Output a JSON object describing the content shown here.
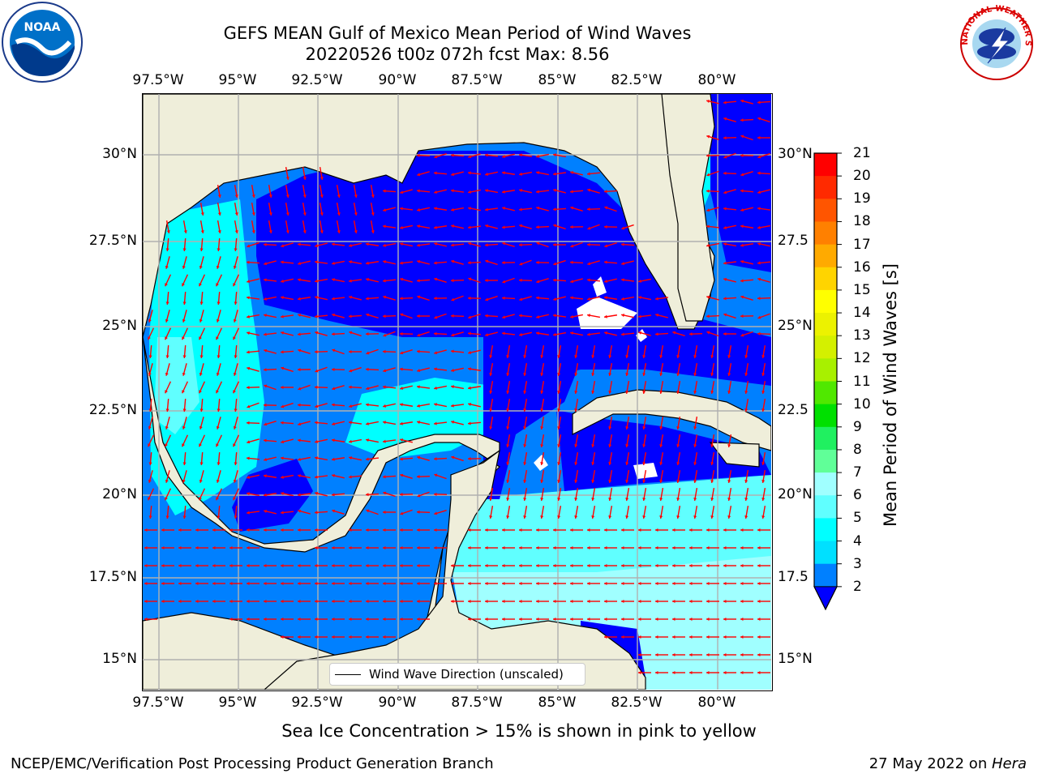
{
  "header": {
    "title_line1": "GEFS MEAN Gulf of Mexico Mean Period of Wind Waves",
    "title_line2": "20220526 t00z 072h fcst   Max: 8.56"
  },
  "axes": {
    "lon_ticks": [
      "97.5°W",
      "95°W",
      "92.5°W",
      "90°W",
      "87.5°W",
      "85°W",
      "82.5°W",
      "80°W"
    ],
    "lat_ticks_left": [
      "30°N",
      "27.5°N",
      "25°N",
      "22.5°N",
      "20°N",
      "17.5°N",
      "15°N"
    ],
    "lat_ticks_right": [
      "30°N",
      "27.5",
      "25°N",
      "22.5",
      "20°N",
      "17.5",
      "15°N"
    ]
  },
  "colorbar": {
    "label": "Mean Period of Wind Waves [s]",
    "ticks": [
      "21",
      "20",
      "19",
      "18",
      "17",
      "16",
      "15",
      "14",
      "13",
      "12",
      "11",
      "10",
      "9",
      "8",
      "7",
      "6",
      "5",
      "4",
      "3",
      "2"
    ],
    "colors": [
      "#ff0000",
      "#ff2a00",
      "#ff5500",
      "#ff8000",
      "#ffaa00",
      "#ffd400",
      "#ffff00",
      "#ecf200",
      "#d4f000",
      "#a8f000",
      "#50e800",
      "#00e000",
      "#20f060",
      "#60ff98",
      "#a0ffff",
      "#60ffff",
      "#00ffff",
      "#00e0ff",
      "#0080ff",
      "#0000ff"
    ]
  },
  "legend": {
    "label": "Wind Wave Direction (unscaled)"
  },
  "map_colors": {
    "land": "#efeeda",
    "band_2_4": "#0000ff",
    "band_4_5": "#0080ff",
    "band_5_6": "#00ffff",
    "band_6_7": "#60ffff",
    "band_7_8": "#a0ffff",
    "arrow": "#ff0000",
    "grid": "#b0b0b0"
  },
  "note": "Sea Ice Concentration > 15% is shown in pink to yellow",
  "footer": {
    "left": "NCEP/EMC/Verification Post Processing Product Generation Branch",
    "date": "27 May 2022 on ",
    "machine": "Hera"
  },
  "logos": {
    "noaa": "NOAA",
    "nws": "NATIONAL WEATHER SERVICE"
  }
}
